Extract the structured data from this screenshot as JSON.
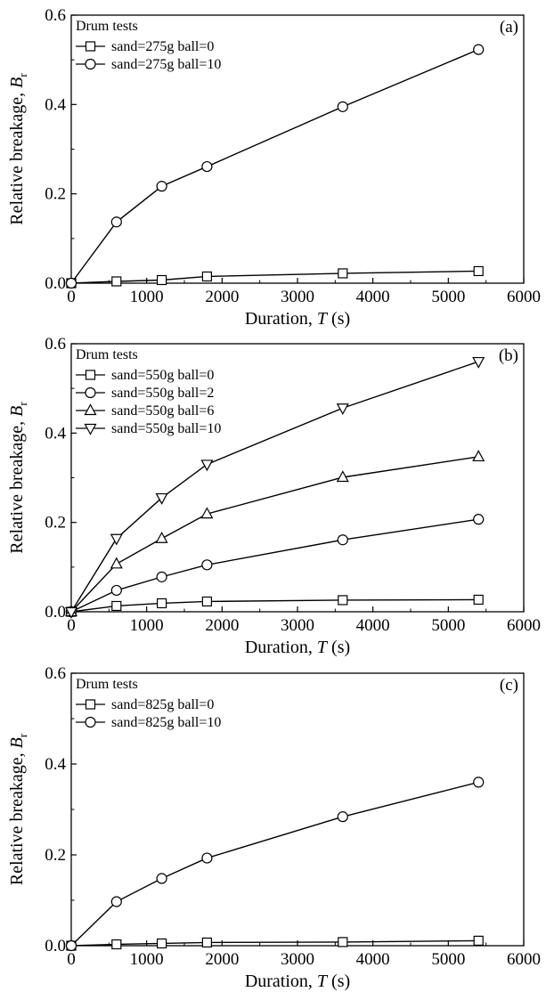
{
  "chart_data": [
    {
      "type": "line",
      "panel_label": "(a)",
      "legend_title": "Drum tests",
      "xlabel": "Duration, ",
      "xlabel_var": "T",
      "xlabel_unit": " (s)",
      "ylabel": "Relative breakage, ",
      "ylabel_var": "B",
      "ylabel_sub": "r",
      "xlim": [
        0,
        6000
      ],
      "ylim": [
        0,
        0.6
      ],
      "x_ticks": [
        "0",
        "1000",
        "2000",
        "3000",
        "4000",
        "5000",
        "6000"
      ],
      "y_ticks": [
        "0.0",
        "0.2",
        "0.4",
        "0.6"
      ],
      "legend_position": "top-left",
      "series": [
        {
          "name": "sand=275g ball=0",
          "marker": "square",
          "x": [
            0,
            600,
            1200,
            1800,
            3600,
            5400
          ],
          "y": [
            0,
            0.004,
            0.007,
            0.015,
            0.022,
            0.027
          ]
        },
        {
          "name": "sand=275g ball=10",
          "marker": "circle",
          "x": [
            0,
            600,
            1200,
            1800,
            3600,
            5400
          ],
          "y": [
            0,
            0.137,
            0.217,
            0.261,
            0.395,
            0.523
          ]
        }
      ]
    },
    {
      "type": "line",
      "panel_label": "(b)",
      "legend_title": "Drum tests",
      "xlabel": "Duration, ",
      "xlabel_var": "T",
      "xlabel_unit": " (s)",
      "ylabel": "Relative breakage, ",
      "ylabel_var": "B",
      "ylabel_sub": "r",
      "xlim": [
        0,
        6000
      ],
      "ylim": [
        0,
        0.6
      ],
      "x_ticks": [
        "0",
        "1000",
        "2000",
        "3000",
        "4000",
        "5000",
        "6000"
      ],
      "y_ticks": [
        "0.0",
        "0.2",
        "0.4",
        "0.6"
      ],
      "legend_position": "top-left",
      "series": [
        {
          "name": "sand=550g ball=0",
          "marker": "square",
          "x": [
            0,
            600,
            1200,
            1800,
            3600,
            5400
          ],
          "y": [
            0,
            0.013,
            0.019,
            0.023,
            0.026,
            0.027
          ]
        },
        {
          "name": "sand=550g ball=2",
          "marker": "circle",
          "x": [
            0,
            600,
            1200,
            1800,
            3600,
            5400
          ],
          "y": [
            0,
            0.048,
            0.078,
            0.105,
            0.161,
            0.207
          ]
        },
        {
          "name": "sand=550g ball=6",
          "marker": "triangle-up",
          "x": [
            0,
            600,
            1200,
            1800,
            3600,
            5400
          ],
          "y": [
            0,
            0.107,
            0.164,
            0.219,
            0.301,
            0.347
          ]
        },
        {
          "name": "sand=550g ball=10",
          "marker": "triangle-down",
          "x": [
            0,
            600,
            1200,
            1800,
            3600,
            5400
          ],
          "y": [
            0,
            0.164,
            0.255,
            0.33,
            0.456,
            0.56
          ]
        }
      ]
    },
    {
      "type": "line",
      "panel_label": "(c)",
      "legend_title": "Drum tests",
      "xlabel": "Duration, ",
      "xlabel_var": "T",
      "xlabel_unit": " (s)",
      "ylabel": "Relative breakage, ",
      "ylabel_var": "B",
      "ylabel_sub": "r",
      "xlim": [
        0,
        6000
      ],
      "ylim": [
        0,
        0.6
      ],
      "x_ticks": [
        "0",
        "1000",
        "2000",
        "3000",
        "4000",
        "5000",
        "6000"
      ],
      "y_ticks": [
        "0.0",
        "0.2",
        "0.4",
        "0.6"
      ],
      "legend_position": "top-left",
      "series": [
        {
          "name": "sand=825g ball=0",
          "marker": "square",
          "x": [
            0,
            600,
            1200,
            1800,
            3600,
            5400
          ],
          "y": [
            0,
            0.003,
            0.005,
            0.007,
            0.008,
            0.011
          ]
        },
        {
          "name": "sand=825g ball=10",
          "marker": "circle",
          "x": [
            0,
            600,
            1200,
            1800,
            3600,
            5400
          ],
          "y": [
            0,
            0.097,
            0.148,
            0.193,
            0.284,
            0.36
          ]
        }
      ]
    }
  ]
}
